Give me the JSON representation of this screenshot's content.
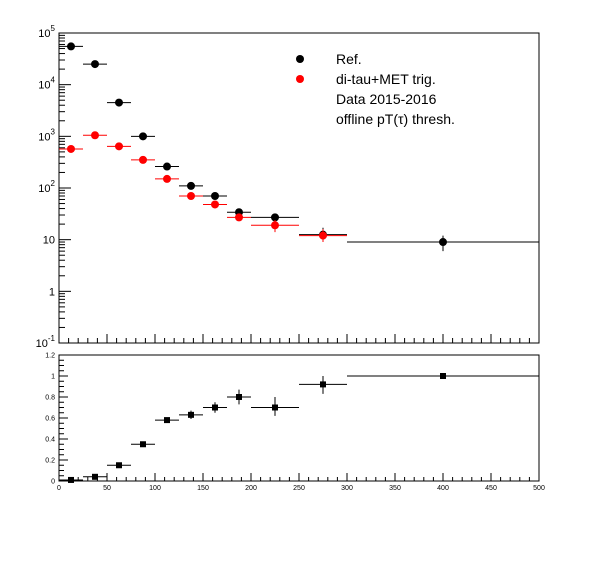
{
  "chart_data": [
    {
      "type": "scatter",
      "panel": "top",
      "yscale": "log",
      "xlim": [
        0,
        500
      ],
      "ylim": [
        0.1,
        100000
      ],
      "y_tick_labels": [
        {
          "value": 100000,
          "base": "10",
          "exp": "5"
        },
        {
          "value": 10000,
          "base": "10",
          "exp": "4"
        },
        {
          "value": 1000,
          "base": "10",
          "exp": "3"
        },
        {
          "value": 100,
          "base": "10",
          "exp": "2"
        },
        {
          "value": 10,
          "base": "10",
          "exp": ""
        },
        {
          "value": 1,
          "base": "1",
          "exp": ""
        },
        {
          "value": 0.1,
          "base": "10",
          "exp": "-1"
        }
      ],
      "legend_position": "top-right",
      "legend": [
        {
          "label": "Ref.",
          "color": "#000000",
          "marker": "circle"
        },
        {
          "label": "di-tau+MET trig.",
          "color": "#ff0000",
          "marker": "circle"
        },
        {
          "label": "Data 2015-2016",
          "color": "",
          "marker": "none"
        },
        {
          "label": "offline pT(τ) thresh.",
          "color": "",
          "marker": "none"
        }
      ],
      "series": [
        {
          "name": "Ref.",
          "color": "#000000",
          "marker": "circle",
          "points": [
            {
              "x0": 0,
              "x1": 25,
              "x": 12.5,
              "y": 55000
            },
            {
              "x0": 25,
              "x1": 50,
              "x": 37.5,
              "y": 25000
            },
            {
              "x0": 50,
              "x1": 75,
              "x": 62.5,
              "y": 4500
            },
            {
              "x0": 75,
              "x1": 100,
              "x": 87.5,
              "y": 1000
            },
            {
              "x0": 100,
              "x1": 125,
              "x": 112.5,
              "y": 260
            },
            {
              "x0": 125,
              "x1": 150,
              "x": 137.5,
              "y": 110
            },
            {
              "x0": 150,
              "x1": 175,
              "x": 162.5,
              "y": 70
            },
            {
              "x0": 175,
              "x1": 200,
              "x": 187.5,
              "y": 34
            },
            {
              "x0": 200,
              "x1": 250,
              "x": 225,
              "y": 27
            },
            {
              "x0": 250,
              "x1": 300,
              "x": 275,
              "y": 12.5,
              "err": [
                9,
                17
              ]
            },
            {
              "x0": 300,
              "x1": 500,
              "x": 400,
              "y": 9,
              "err": [
                6,
                12
              ]
            }
          ]
        },
        {
          "name": "di-tau+MET trig.",
          "color": "#ff0000",
          "marker": "circle",
          "points": [
            {
              "x0": 0,
              "x1": 25,
              "x": 12.5,
              "y": 570
            },
            {
              "x0": 25,
              "x1": 50,
              "x": 37.5,
              "y": 1050
            },
            {
              "x0": 50,
              "x1": 75,
              "x": 62.5,
              "y": 640
            },
            {
              "x0": 75,
              "x1": 100,
              "x": 87.5,
              "y": 350
            },
            {
              "x0": 100,
              "x1": 125,
              "x": 112.5,
              "y": 150
            },
            {
              "x0": 125,
              "x1": 150,
              "x": 137.5,
              "y": 70
            },
            {
              "x0": 150,
              "x1": 175,
              "x": 162.5,
              "y": 48
            },
            {
              "x0": 175,
              "x1": 200,
              "x": 187.5,
              "y": 27
            },
            {
              "x0": 200,
              "x1": 250,
              "x": 225,
              "y": 19,
              "err": [
                14,
                24
              ]
            },
            {
              "x0": 250,
              "x1": 300,
              "x": 275,
              "y": 12,
              "err": [
                9,
                16
              ]
            }
          ]
        }
      ]
    },
    {
      "type": "scatter",
      "panel": "bottom",
      "xlim": [
        0,
        500
      ],
      "ylim": [
        0,
        1.2
      ],
      "x_ticks": [
        "0",
        "50",
        "100",
        "150",
        "200",
        "250",
        "300",
        "350",
        "400",
        "450",
        "500"
      ],
      "y_ticks": [
        "0",
        "0.2",
        "0.4",
        "0.6",
        "0.8",
        "1",
        "1.2"
      ],
      "series": [
        {
          "name": "",
          "color": "#000000",
          "marker": "square",
          "points": [
            {
              "x0": 0,
              "x1": 25,
              "x": 12.5,
              "y": 0.01
            },
            {
              "x0": 25,
              "x1": 50,
              "x": 37.5,
              "y": 0.04
            },
            {
              "x0": 50,
              "x1": 75,
              "x": 62.5,
              "y": 0.15
            },
            {
              "x0": 75,
              "x1": 100,
              "x": 87.5,
              "y": 0.35
            },
            {
              "x0": 100,
              "x1": 125,
              "x": 112.5,
              "y": 0.58
            },
            {
              "x0": 125,
              "x1": 150,
              "x": 137.5,
              "y": 0.63,
              "err": [
                0.59,
                0.67
              ]
            },
            {
              "x0": 150,
              "x1": 175,
              "x": 162.5,
              "y": 0.7,
              "err": [
                0.65,
                0.75
              ]
            },
            {
              "x0": 175,
              "x1": 200,
              "x": 187.5,
              "y": 0.8,
              "err": [
                0.73,
                0.87
              ]
            },
            {
              "x0": 200,
              "x1": 250,
              "x": 225,
              "y": 0.7,
              "err": [
                0.62,
                0.8
              ]
            },
            {
              "x0": 250,
              "x1": 300,
              "x": 275,
              "y": 0.92,
              "err": [
                0.83,
                1.0
              ]
            },
            {
              "x0": 300,
              "x1": 500,
              "x": 400,
              "y": 1.0
            }
          ]
        }
      ]
    }
  ]
}
